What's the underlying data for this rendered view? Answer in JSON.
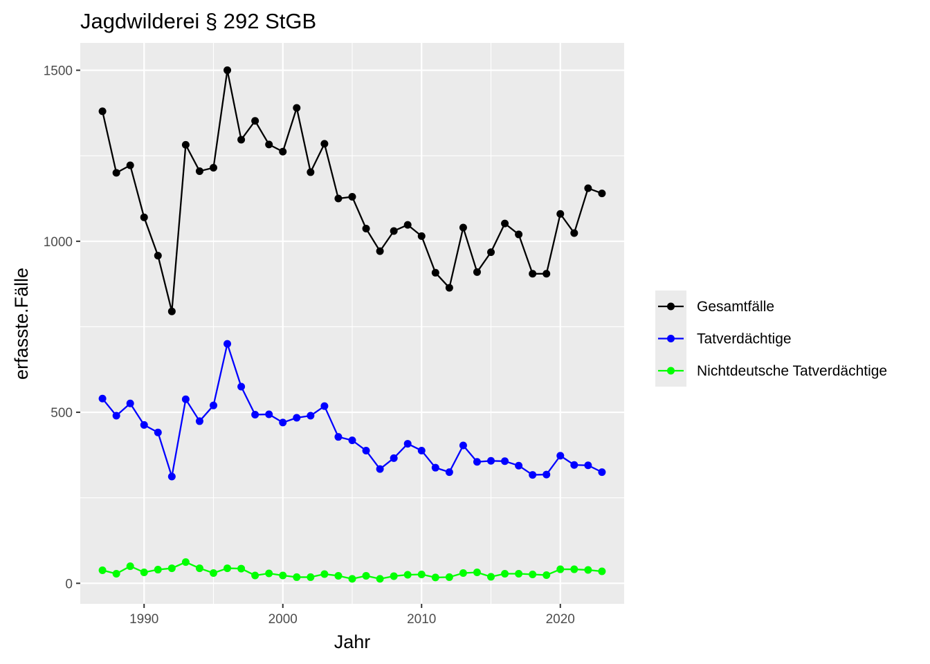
{
  "chart_data": {
    "type": "line",
    "title": "Jagdwilderei § 292 StGB",
    "xlabel": "Jahr",
    "ylabel": "erfasste.Fälle",
    "xlim": [
      1985.4,
      2024.6
    ],
    "ylim": [
      -60,
      1580
    ],
    "x_ticks": [
      1990,
      2000,
      2010,
      2020
    ],
    "y_ticks": [
      0,
      500,
      1000,
      1500
    ],
    "grid": true,
    "legend_position": "right",
    "x": [
      1987,
      1988,
      1989,
      1990,
      1991,
      1992,
      1993,
      1994,
      1995,
      1996,
      1997,
      1998,
      1999,
      2000,
      2001,
      2002,
      2003,
      2004,
      2005,
      2006,
      2007,
      2008,
      2009,
      2010,
      2011,
      2012,
      2013,
      2014,
      2015,
      2016,
      2017,
      2018,
      2019,
      2020,
      2021,
      2022,
      2023
    ],
    "series": [
      {
        "name": "Gesamtfälle",
        "color": "#000000",
        "values": [
          1380,
          1200,
          1222,
          1070,
          958,
          795,
          1282,
          1205,
          1215,
          1500,
          1297,
          1352,
          1283,
          1262,
          1390,
          1202,
          1285,
          1125,
          1130,
          1037,
          971,
          1030,
          1048,
          1015,
          908,
          864,
          1040,
          910,
          968,
          1052,
          1020,
          905,
          905,
          1080,
          1024,
          1155,
          1140
        ]
      },
      {
        "name": "Tatverdächtige",
        "color": "#0000ff",
        "values": [
          540,
          490,
          526,
          463,
          441,
          312,
          538,
          474,
          520,
          700,
          575,
          493,
          494,
          470,
          484,
          490,
          518,
          428,
          418,
          388,
          334,
          366,
          408,
          388,
          338,
          325,
          403,
          355,
          358,
          357,
          344,
          317,
          318,
          373,
          346,
          345,
          325
        ]
      },
      {
        "name": "Nichtdeutsche Tatverdächtige",
        "color": "#00ff00",
        "values": [
          38,
          28,
          50,
          32,
          40,
          44,
          62,
          44,
          30,
          44,
          43,
          23,
          29,
          23,
          18,
          18,
          27,
          22,
          13,
          22,
          13,
          21,
          25,
          26,
          17,
          18,
          30,
          32,
          19,
          28,
          28,
          26,
          24,
          41,
          41,
          39,
          35
        ]
      }
    ]
  }
}
